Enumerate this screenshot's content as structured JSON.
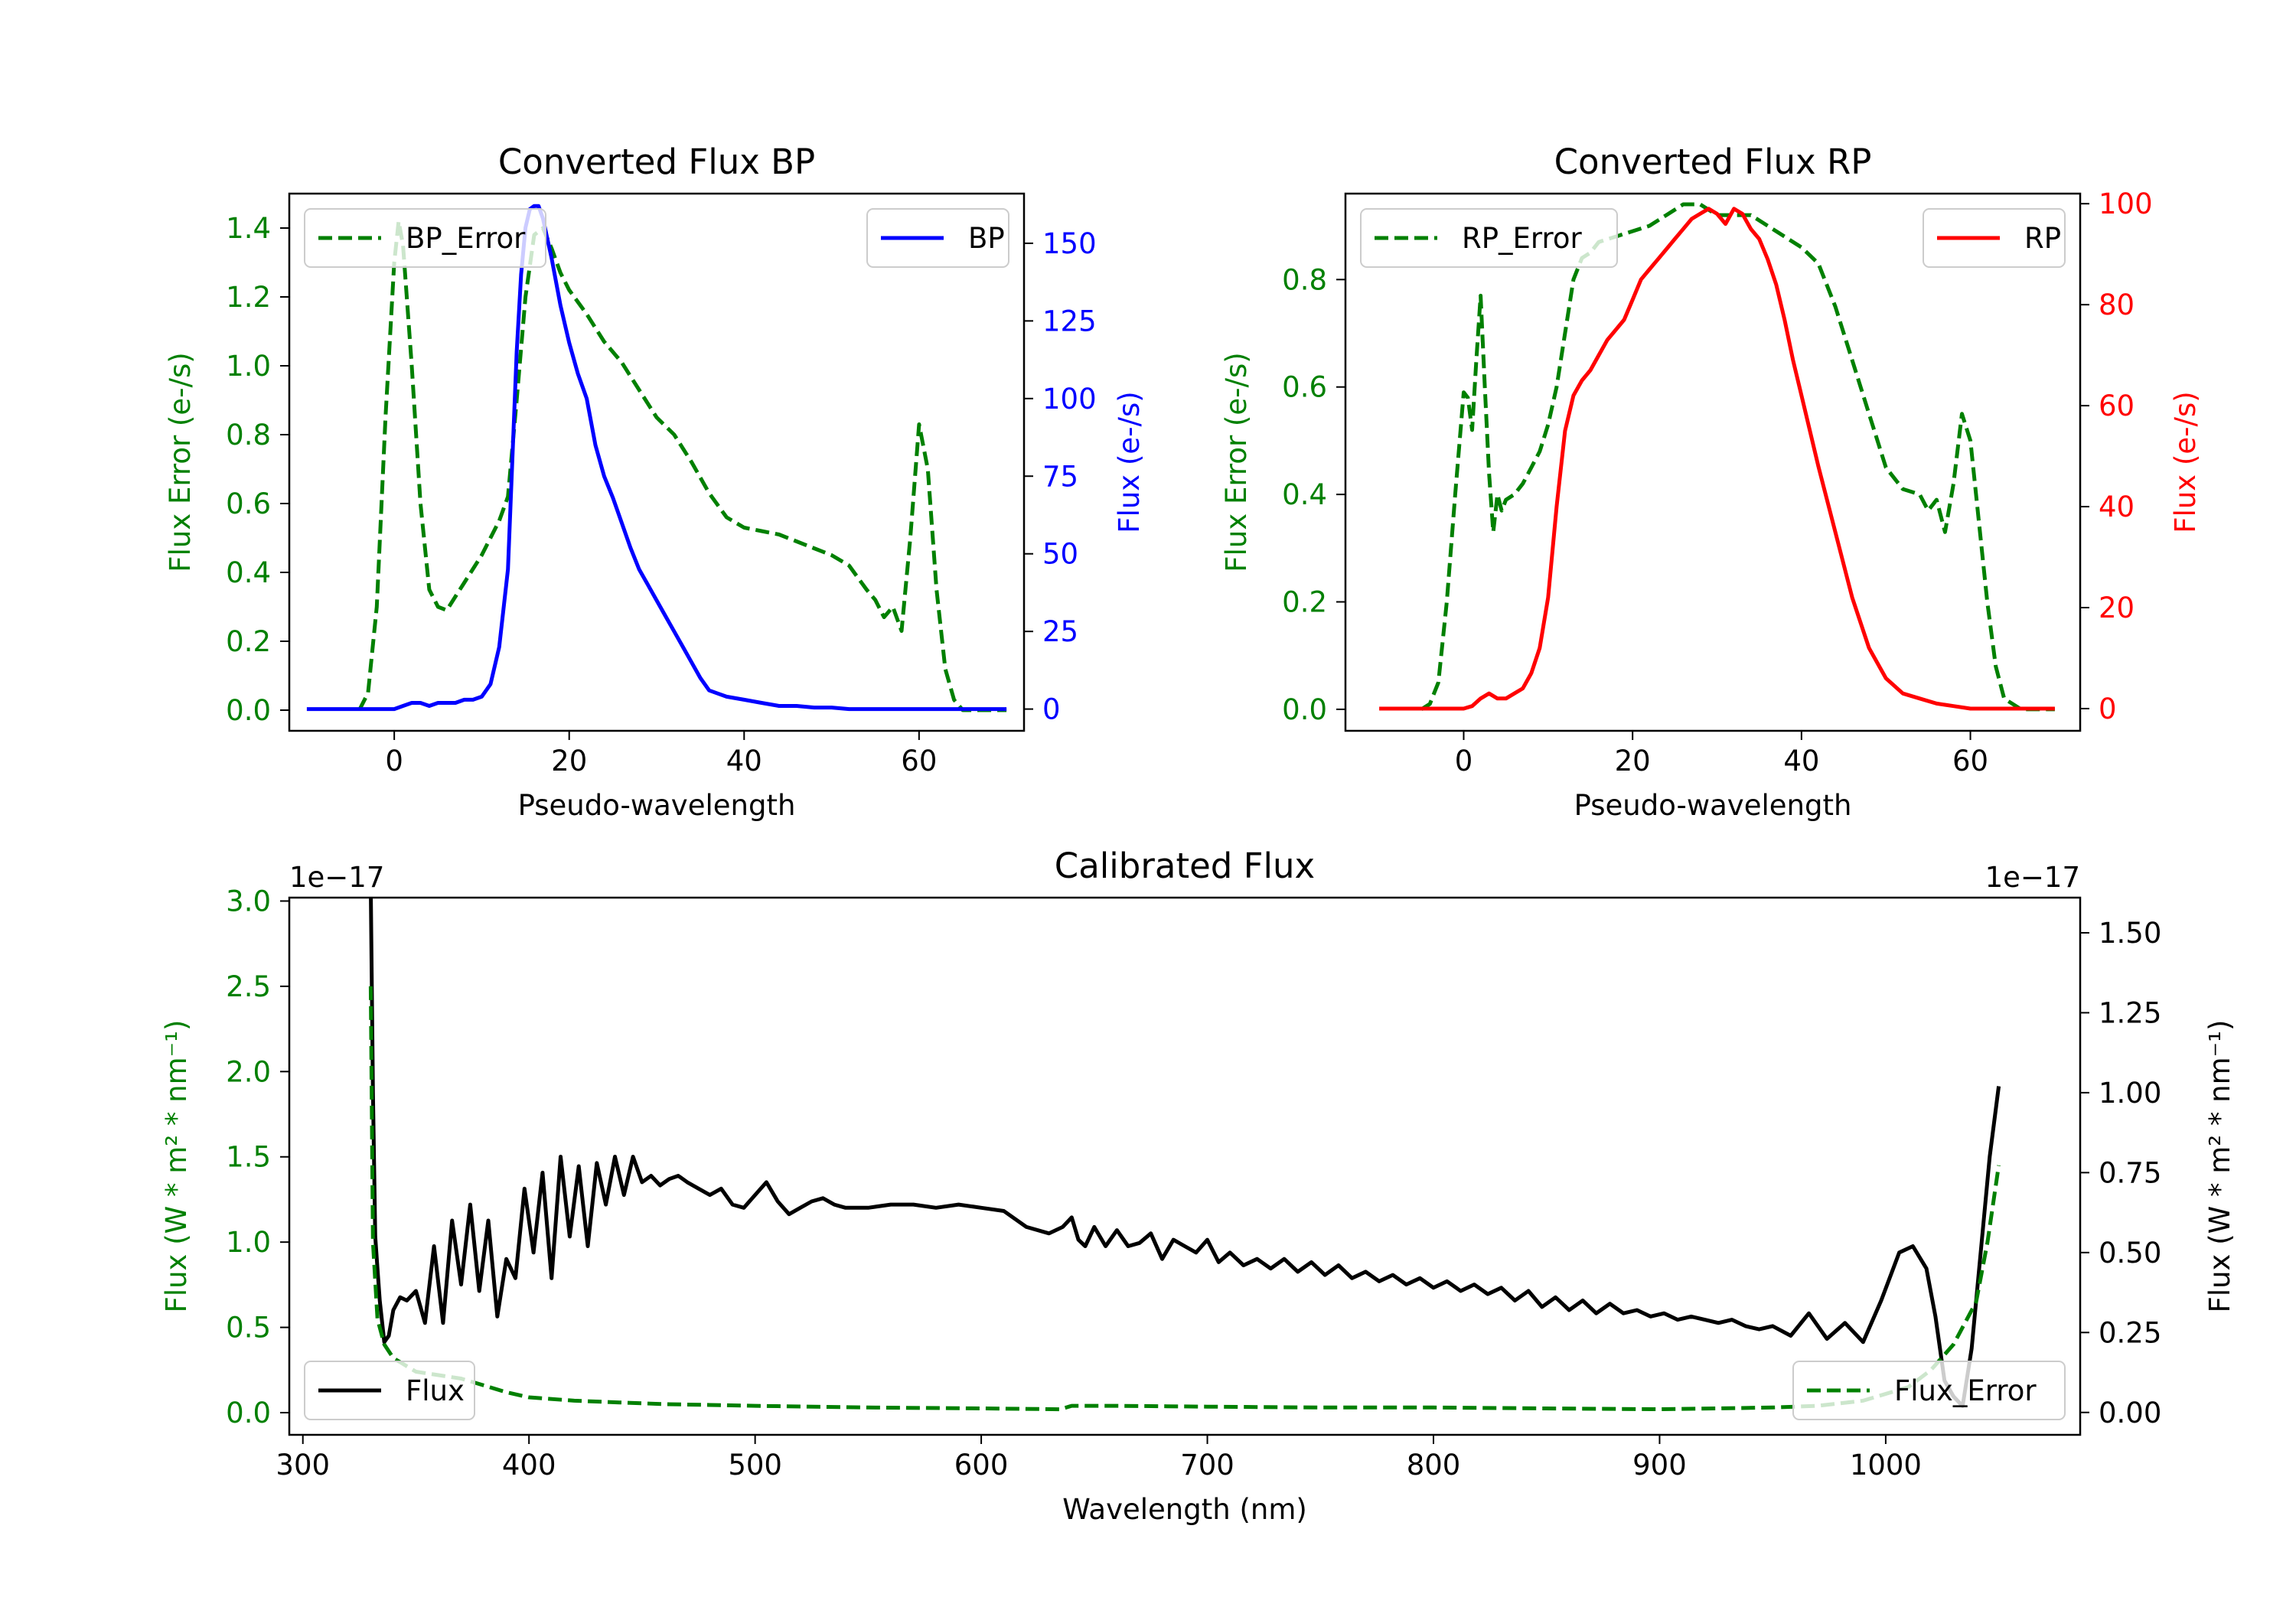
{
  "colors": {
    "bp": "#0000ff",
    "rp": "#ff0000",
    "error": "#008000",
    "flux": "#000000",
    "axis": "#000000"
  },
  "chart_data": [
    {
      "id": "bp",
      "type": "line",
      "title": "Converted Flux BP",
      "xlabel": "Pseudo-wavelength",
      "ylabel_left": "Flux Error (e-/s)",
      "ylabel_right": "Flux (e-/s)",
      "xlim": [
        -12,
        72
      ],
      "ylim_left": [
        -0.06,
        1.5
      ],
      "ylim_right": [
        -7,
        166
      ],
      "xticks": [
        0,
        20,
        40,
        60
      ],
      "xtick_labels": [
        "0",
        "20",
        "40",
        "60"
      ],
      "yticks_left": [
        0.0,
        0.2,
        0.4,
        0.6,
        0.8,
        1.0,
        1.2,
        1.4
      ],
      "ytick_labels_left": [
        "0.0",
        "0.2",
        "0.4",
        "0.6",
        "0.8",
        "1.0",
        "1.2",
        "1.4"
      ],
      "yticks_right": [
        0,
        25,
        50,
        75,
        100,
        125,
        150
      ],
      "ytick_labels_right": [
        "0",
        "25",
        "50",
        "75",
        "100",
        "125",
        "150"
      ],
      "legend_left": "BP_Error",
      "legend_right": "BP",
      "series": [
        {
          "name": "BP_Error",
          "axis": "left",
          "style": "dashed",
          "color": "error",
          "x": [
            -4,
            -3,
            -2,
            -1,
            0,
            0.5,
            1,
            2,
            3,
            4,
            5,
            6,
            7,
            8,
            10,
            12,
            13,
            14,
            15,
            16,
            17,
            18,
            19,
            20,
            22,
            24,
            26,
            28,
            30,
            32,
            34,
            36,
            38,
            40,
            42,
            44,
            46,
            48,
            50,
            52,
            54,
            55,
            56,
            57,
            58,
            59,
            60,
            61,
            62,
            63,
            64,
            65,
            66,
            68,
            70
          ],
          "y": [
            0.0,
            0.05,
            0.3,
            0.85,
            1.3,
            1.42,
            1.35,
            1.0,
            0.6,
            0.35,
            0.3,
            0.29,
            0.33,
            0.37,
            0.45,
            0.55,
            0.62,
            0.9,
            1.2,
            1.38,
            1.4,
            1.34,
            1.27,
            1.22,
            1.15,
            1.07,
            1.01,
            0.93,
            0.85,
            0.8,
            0.72,
            0.63,
            0.56,
            0.53,
            0.52,
            0.51,
            0.49,
            0.47,
            0.45,
            0.42,
            0.35,
            0.32,
            0.27,
            0.3,
            0.23,
            0.5,
            0.83,
            0.7,
            0.35,
            0.12,
            0.03,
            0.0,
            0.0,
            0.0,
            0.0
          ]
        },
        {
          "name": "BP",
          "axis": "right",
          "style": "solid",
          "color": "bp",
          "x": [
            -10,
            -8,
            -6,
            -4,
            -2,
            0,
            1,
            2,
            3,
            4,
            5,
            6,
            7,
            8,
            9,
            10,
            11,
            12,
            13,
            13.5,
            14,
            14.5,
            15,
            15.5,
            16,
            16.5,
            17,
            18,
            19,
            20,
            21,
            22,
            23,
            24,
            25,
            26,
            27,
            28,
            29,
            30,
            31,
            32,
            33,
            34,
            35,
            36,
            37,
            38,
            40,
            42,
            44,
            46,
            48,
            50,
            52,
            54,
            56,
            58,
            60,
            62,
            64,
            66,
            68,
            70
          ],
          "y": [
            0,
            0,
            0,
            0,
            0,
            0,
            1,
            2,
            2,
            1,
            2,
            2,
            2,
            3,
            3,
            4,
            8,
            20,
            45,
            80,
            115,
            140,
            155,
            161,
            162,
            162,
            158,
            145,
            130,
            118,
            108,
            100,
            85,
            75,
            68,
            60,
            52,
            45,
            40,
            35,
            30,
            25,
            20,
            15,
            10,
            6,
            5,
            4,
            3,
            2,
            1,
            1,
            0.5,
            0.5,
            0,
            0,
            0,
            0,
            0,
            0,
            0,
            0,
            0,
            0
          ]
        }
      ]
    },
    {
      "id": "rp",
      "type": "line",
      "title": "Converted Flux RP",
      "xlabel": "Pseudo-wavelength",
      "ylabel_left": "Flux Error (e-/s)",
      "ylabel_right": "Flux (e-/s)",
      "xlim": [
        -14,
        73
      ],
      "ylim_left": [
        -0.04,
        0.96
      ],
      "ylim_right": [
        -4.4,
        102
      ],
      "xticks": [
        0,
        20,
        40,
        60
      ],
      "xtick_labels": [
        "0",
        "20",
        "40",
        "60"
      ],
      "yticks_left": [
        0.0,
        0.2,
        0.4,
        0.6,
        0.8
      ],
      "ytick_labels_left": [
        "0.0",
        "0.2",
        "0.4",
        "0.6",
        "0.8"
      ],
      "yticks_right": [
        0,
        20,
        40,
        60,
        80,
        100
      ],
      "ytick_labels_right": [
        "0",
        "20",
        "40",
        "60",
        "80",
        "100"
      ],
      "legend_left": "RP_Error",
      "legend_right": "RP",
      "series": [
        {
          "name": "RP_Error",
          "axis": "left",
          "style": "dashed",
          "color": "error",
          "x": [
            -5,
            -4,
            -3,
            -2,
            -1,
            0,
            0.5,
            1,
            1.5,
            2,
            2.5,
            3,
            3.5,
            4,
            4.5,
            5,
            6,
            7,
            8,
            9,
            10,
            11,
            12,
            13,
            14,
            15,
            16,
            18,
            20,
            22,
            24,
            26,
            28,
            30,
            32,
            34,
            36,
            38,
            40,
            42,
            44,
            46,
            48,
            50,
            52,
            54,
            55,
            56,
            57,
            58,
            59,
            60,
            61,
            62,
            63,
            64,
            66,
            68,
            70
          ],
          "y": [
            0.0,
            0.01,
            0.05,
            0.2,
            0.4,
            0.59,
            0.58,
            0.52,
            0.65,
            0.77,
            0.6,
            0.44,
            0.33,
            0.4,
            0.37,
            0.39,
            0.4,
            0.42,
            0.45,
            0.48,
            0.53,
            0.6,
            0.7,
            0.8,
            0.84,
            0.85,
            0.87,
            0.88,
            0.89,
            0.9,
            0.92,
            0.94,
            0.94,
            0.92,
            0.92,
            0.92,
            0.9,
            0.88,
            0.86,
            0.83,
            0.75,
            0.65,
            0.55,
            0.45,
            0.41,
            0.4,
            0.37,
            0.39,
            0.33,
            0.42,
            0.55,
            0.5,
            0.35,
            0.2,
            0.08,
            0.02,
            0.0,
            0.0,
            0.0
          ]
        },
        {
          "name": "RP",
          "axis": "right",
          "style": "solid",
          "color": "rp",
          "x": [
            -10,
            -6,
            -4,
            -2,
            0,
            1,
            2,
            3,
            4,
            5,
            6,
            7,
            8,
            9,
            10,
            11,
            12,
            13,
            14,
            15,
            16,
            17,
            18,
            19,
            20,
            21,
            22,
            23,
            24,
            25,
            26,
            27,
            28,
            29,
            30,
            31,
            32,
            33,
            34,
            35,
            36,
            37,
            38,
            39,
            40,
            42,
            44,
            46,
            48,
            50,
            52,
            54,
            56,
            58,
            60,
            62,
            64,
            66,
            68,
            70
          ],
          "y": [
            0,
            0,
            0,
            0,
            0,
            0.5,
            2,
            3,
            2,
            2,
            3,
            4,
            7,
            12,
            22,
            40,
            55,
            62,
            65,
            67,
            70,
            73,
            75,
            77,
            81,
            85,
            87,
            89,
            91,
            93,
            95,
            97,
            98,
            99,
            98,
            96,
            99,
            98,
            95,
            93,
            89,
            84,
            77,
            69,
            62,
            48,
            35,
            22,
            12,
            6,
            3,
            2,
            1,
            0.5,
            0,
            0,
            0,
            0,
            0,
            0
          ]
        }
      ]
    },
    {
      "id": "calibrated",
      "type": "line",
      "title": "Calibrated Flux",
      "xlabel": "Wavelength (nm)",
      "ylabel_left": "Flux (W * m² * nm⁻¹)",
      "ylabel_right": "Flux (W * m² * nm⁻¹)",
      "left_scale_label": "1e−17",
      "right_scale_label": "1e−17",
      "xlim": [
        294,
        1086
      ],
      "ylim_left": [
        -0.13,
        3.02
      ],
      "ylim_right": [
        -0.07,
        1.61
      ],
      "xticks": [
        300,
        400,
        500,
        600,
        700,
        800,
        900,
        1000
      ],
      "xtick_labels": [
        "300",
        "400",
        "500",
        "600",
        "700",
        "800",
        "900",
        "1000"
      ],
      "yticks_left": [
        0.0,
        0.5,
        1.0,
        1.5,
        2.0,
        2.5,
        3.0
      ],
      "ytick_labels_left": [
        "0.0",
        "0.5",
        "1.0",
        "1.5",
        "2.0",
        "2.5",
        "3.0"
      ],
      "yticks_right": [
        0.0,
        0.25,
        0.5,
        0.75,
        1.0,
        1.25,
        1.5
      ],
      "ytick_labels_right": [
        "0.00",
        "0.25",
        "0.50",
        "0.75",
        "1.00",
        "1.25",
        "1.50"
      ],
      "legend_flux": "Flux",
      "legend_error": "Flux_Error",
      "series": [
        {
          "name": "Flux",
          "axis": "right",
          "style": "solid",
          "color": "flux",
          "x": [
            330,
            331,
            332,
            333,
            334,
            336,
            338,
            340,
            343,
            346,
            350,
            354,
            358,
            362,
            366,
            370,
            374,
            378,
            382,
            386,
            390,
            394,
            398,
            402,
            406,
            410,
            414,
            418,
            422,
            426,
            430,
            434,
            438,
            442,
            446,
            450,
            454,
            458,
            462,
            466,
            470,
            475,
            480,
            485,
            490,
            495,
            500,
            505,
            510,
            515,
            520,
            525,
            530,
            535,
            540,
            545,
            550,
            560,
            570,
            580,
            590,
            600,
            610,
            620,
            630,
            636,
            640,
            643,
            646,
            650,
            655,
            660,
            665,
            670,
            675,
            680,
            685,
            690,
            695,
            700,
            705,
            710,
            716,
            722,
            728,
            734,
            740,
            746,
            752,
            758,
            764,
            770,
            776,
            782,
            788,
            794,
            800,
            806,
            812,
            818,
            824,
            830,
            836,
            842,
            848,
            854,
            860,
            866,
            872,
            878,
            884,
            890,
            896,
            902,
            908,
            914,
            920,
            926,
            932,
            938,
            944,
            950,
            958,
            966,
            974,
            982,
            990,
            998,
            1006,
            1012,
            1018,
            1022,
            1026,
            1030,
            1034,
            1038,
            1042,
            1046,
            1050
          ],
          "y": [
            1.65,
            1.0,
            0.55,
            0.45,
            0.35,
            0.22,
            0.24,
            0.32,
            0.36,
            0.35,
            0.38,
            0.28,
            0.52,
            0.28,
            0.6,
            0.4,
            0.65,
            0.38,
            0.6,
            0.3,
            0.48,
            0.42,
            0.7,
            0.5,
            0.75,
            0.42,
            0.8,
            0.55,
            0.77,
            0.52,
            0.78,
            0.65,
            0.8,
            0.68,
            0.8,
            0.72,
            0.74,
            0.71,
            0.73,
            0.74,
            0.72,
            0.7,
            0.68,
            0.7,
            0.65,
            0.64,
            0.68,
            0.72,
            0.66,
            0.62,
            0.64,
            0.66,
            0.67,
            0.65,
            0.64,
            0.64,
            0.64,
            0.65,
            0.65,
            0.64,
            0.65,
            0.64,
            0.63,
            0.58,
            0.56,
            0.58,
            0.61,
            0.54,
            0.52,
            0.58,
            0.52,
            0.57,
            0.52,
            0.53,
            0.56,
            0.48,
            0.54,
            0.52,
            0.5,
            0.54,
            0.47,
            0.5,
            0.46,
            0.48,
            0.45,
            0.48,
            0.44,
            0.47,
            0.43,
            0.46,
            0.42,
            0.44,
            0.41,
            0.43,
            0.4,
            0.42,
            0.39,
            0.41,
            0.38,
            0.4,
            0.37,
            0.39,
            0.35,
            0.38,
            0.33,
            0.36,
            0.32,
            0.35,
            0.31,
            0.34,
            0.31,
            0.32,
            0.3,
            0.31,
            0.29,
            0.3,
            0.29,
            0.28,
            0.29,
            0.27,
            0.26,
            0.27,
            0.24,
            0.31,
            0.23,
            0.28,
            0.22,
            0.35,
            0.5,
            0.52,
            0.45,
            0.3,
            0.1,
            0.05,
            0.02,
            0.2,
            0.5,
            0.8,
            1.02
          ]
        },
        {
          "name": "Flux_Error",
          "axis": "left",
          "style": "dashed",
          "color": "error",
          "x": [
            330,
            331,
            333,
            336,
            340,
            345,
            350,
            360,
            370,
            380,
            390,
            400,
            420,
            440,
            460,
            480,
            500,
            550,
            600,
            635,
            640,
            660,
            700,
            750,
            800,
            850,
            900,
            950,
            970,
            990,
            1010,
            1020,
            1030,
            1040,
            1045,
            1050
          ],
          "y": [
            2.5,
            1.0,
            0.55,
            0.4,
            0.32,
            0.28,
            0.24,
            0.22,
            0.2,
            0.16,
            0.12,
            0.09,
            0.07,
            0.06,
            0.05,
            0.045,
            0.04,
            0.03,
            0.025,
            0.02,
            0.04,
            0.04,
            0.035,
            0.03,
            0.03,
            0.025,
            0.02,
            0.03,
            0.04,
            0.07,
            0.15,
            0.25,
            0.4,
            0.65,
            1.0,
            1.45
          ]
        }
      ]
    }
  ]
}
